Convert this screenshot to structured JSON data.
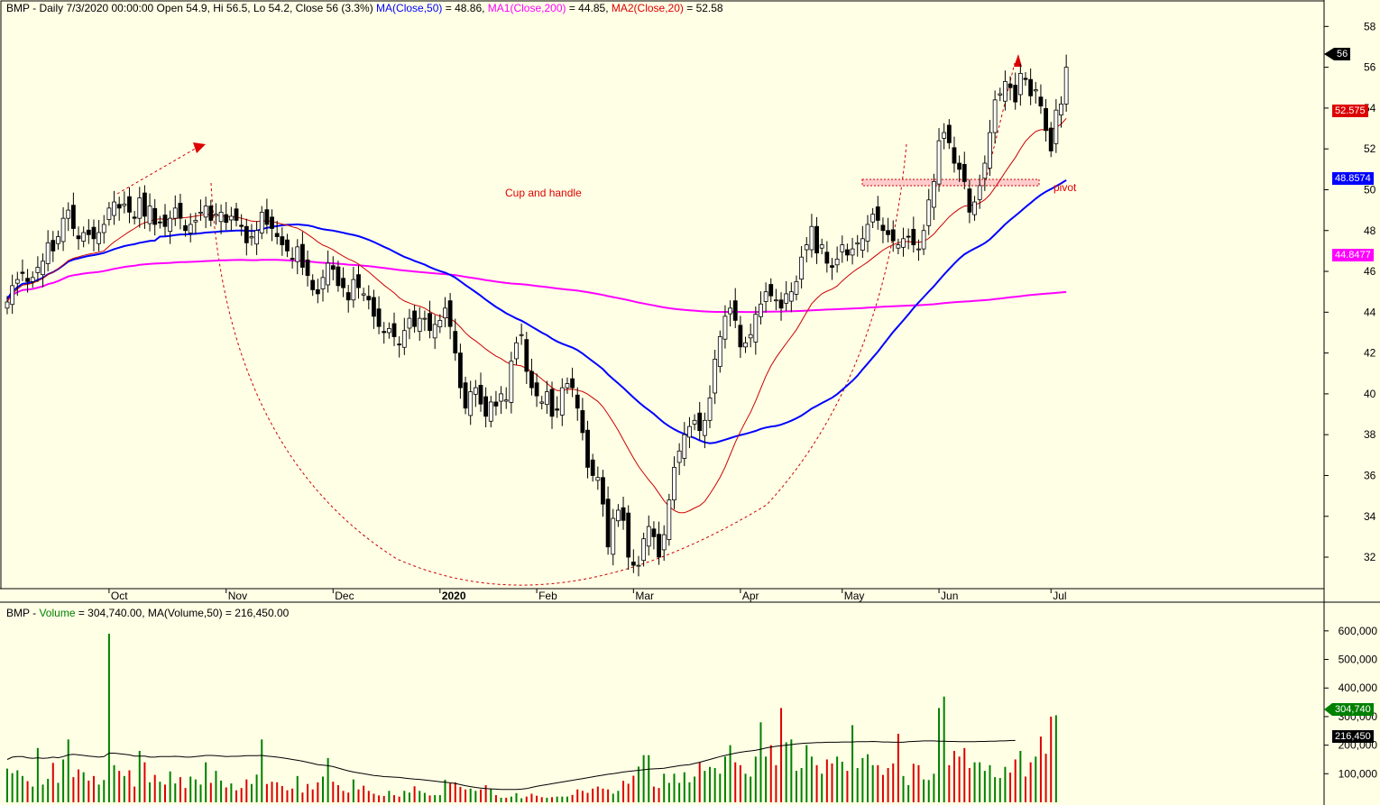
{
  "header": {
    "symbol": "BMP",
    "price_line": " - Daily 7/3/2020 00:00:00 Open 54.9, Hi 56.5, Lo 54.2, Close 56 (3.3%) ",
    "ma50_label": "MA(Close,50)",
    "ma50_value": " = 48.86, ",
    "ma200_label": "MA1(Close,200)",
    "ma200_value": " = 44.85, ",
    "ma20_label": "MA2(Close,20)",
    "ma20_value": " = 52.58"
  },
  "volume_header": {
    "symbol": "BMP",
    "sep": " - ",
    "volume_label": "Volume",
    "rest": " = 304,740.00, MA(Volume,50) = 216,450.00"
  },
  "annotations": {
    "pattern_label": "Cup and handle",
    "pivot_label": "pivot"
  },
  "colors": {
    "background": "#ffffe6",
    "up": "#008000",
    "down": "#dd0000",
    "ma50": "#0000ff",
    "ma200": "#ff00ff",
    "ma20": "#cc0000"
  },
  "tags": {
    "close": "56",
    "ma20": "52.575",
    "ma50": "48.8574",
    "ma200": "44.8477",
    "volume": "304,740",
    "volume_ma": "216,450"
  },
  "chart_data": {
    "type": "candlestick",
    "price_axis": {
      "ticks": [
        "58",
        "56",
        "54",
        "52",
        "50",
        "48",
        "46",
        "44",
        "42",
        "40",
        "38",
        "36",
        "34",
        "32"
      ],
      "range": [
        30.5,
        58.5
      ]
    },
    "volume_axis": {
      "ticks": [
        "600,000",
        "500,000",
        "400,000",
        "300,000",
        "200,000",
        "100,000"
      ],
      "range": [
        0,
        650000
      ]
    },
    "months": [
      {
        "label": "Oct",
        "index": 20
      },
      {
        "label": "Nov",
        "index": 43
      },
      {
        "label": "Dec",
        "index": 64
      },
      {
        "label": "2020",
        "index": 85
      },
      {
        "label": "Feb",
        "index": 104
      },
      {
        "label": "Mar",
        "index": 123
      },
      {
        "label": "Apr",
        "index": 144
      },
      {
        "label": "May",
        "index": 164
      },
      {
        "label": "Jun",
        "index": 183
      },
      {
        "label": "Jul",
        "index": 205
      }
    ],
    "close_series": [
      44.5,
      45.3,
      45.6,
      45.9,
      45.5,
      45.7,
      46.2,
      46.5,
      47.4,
      47.0,
      47.7,
      48.6,
      49.0,
      48.1,
      47.6,
      47.9,
      47.8,
      47.6,
      47.9,
      48.3,
      49.1,
      49.4,
      49.1,
      49.3,
      48.9,
      48.6,
      49.6,
      48.7,
      49.2,
      48.3,
      48.4,
      48.2,
      48.6,
      49.1,
      48.6,
      48.0,
      48.3,
      48.5,
      48.9,
      49.2,
      48.5,
      48.8,
      48.9,
      48.4,
      48.7,
      48.5,
      48.2,
      47.4,
      47.7,
      48.0,
      48.9,
      48.3,
      48.1,
      47.7,
      47.3,
      47.0,
      46.6,
      47.2,
      46.2,
      45.8,
      45.1,
      44.9,
      45.7,
      46.4,
      46.1,
      45.3,
      45.2,
      44.6,
      45.6,
      45.2,
      44.9,
      44.6,
      43.8,
      43.3,
      43.0,
      43.2,
      42.8,
      42.4,
      43.1,
      43.7,
      43.3,
      43.7,
      43.7,
      43.1,
      43.4,
      43.6,
      44.2,
      43.3,
      42.0,
      40.3,
      39.3,
      40.1,
      40.3,
      39.5,
      38.9,
      39.6,
      39.4,
      40.0,
      39.7,
      41.6,
      42.5,
      42.9,
      41.1,
      40.3,
      39.9,
      39.6,
      40.1,
      38.9,
      39.2,
      40.3,
      40.5,
      40.3,
      39.3,
      38.1,
      36.4,
      36.0,
      35.9,
      34.6,
      32.5,
      33.9,
      34.3,
      33.8,
      32.0,
      31.6,
      31.6,
      32.9,
      33.5,
      33.0,
      32.0,
      33.1,
      34.8,
      36.4,
      37.2,
      38.0,
      38.4,
      38.7,
      38.2,
      38.7,
      39.8,
      41.7,
      42.8,
      43.8,
      44.2,
      43.6,
      42.3,
      42.5,
      42.9,
      43.9,
      44.4,
      45.0,
      44.8,
      44.6,
      44.2,
      44.9,
      45.0,
      45.5,
      46.7,
      47.3,
      48.2,
      46.9,
      47.3,
      46.4,
      46.2,
      46.6,
      47.3,
      46.8,
      47.1,
      47.4,
      47.6,
      48.3,
      48.8,
      48.5,
      48.0,
      47.8,
      47.5,
      47.3,
      47.6,
      47.7,
      47.3,
      47.1,
      48.0,
      49.5,
      50.4,
      52.4,
      52.8,
      52.3,
      51.3,
      51.0,
      50.4,
      48.9,
      49.4,
      50.2,
      51.3,
      52.8,
      54.4,
      54.7,
      55.3,
      55.0,
      54.3,
      55.7,
      55.4,
      54.6,
      54.9,
      54.1,
      52.9,
      51.9,
      53.9,
      54.2,
      56.0
    ],
    "volume_series": [
      118000,
      102000,
      112000,
      92000,
      74000,
      55000,
      190000,
      62000,
      82000,
      138000,
      68000,
      150000,
      220000,
      88000,
      115000,
      105000,
      76000,
      92000,
      62000,
      78000,
      590000,
      130000,
      110000,
      92000,
      112000,
      55000,
      180000,
      140000,
      70000,
      96000,
      72000,
      62000,
      108000,
      66000,
      88000,
      50000,
      90000,
      80000,
      62000,
      140000,
      68000,
      110000,
      76000,
      52000,
      66000,
      42000,
      50000,
      80000,
      64000,
      97000,
      220000,
      64000,
      72000,
      70000,
      57000,
      42000,
      48000,
      92000,
      34000,
      64000,
      45000,
      70000,
      90000,
      155000,
      72000,
      60000,
      40000,
      34000,
      80000,
      45000,
      58000,
      40000,
      30000,
      24000,
      22000,
      40000,
      25000,
      20000,
      40000,
      34000,
      56000,
      40000,
      33000,
      24000,
      25000,
      25000,
      79000,
      66000,
      70000,
      54000,
      45000,
      48000,
      40000,
      45000,
      60000,
      46000,
      25000,
      16000,
      16000,
      20000,
      32000,
      14000,
      20000,
      30000,
      23000,
      18000,
      16000,
      18000,
      20000,
      20000,
      20000,
      26000,
      45000,
      40000,
      33000,
      48000,
      55000,
      48000,
      45000,
      30000,
      40000,
      75000,
      65000,
      93000,
      125000,
      165000,
      165000,
      55000,
      50000,
      100000,
      68000,
      100000,
      68000,
      105000,
      70000,
      90000,
      140000,
      110000,
      124000,
      120000,
      100000,
      160000,
      200000,
      140000,
      130000,
      100000,
      90000,
      160000,
      280000,
      160000,
      200000,
      130000,
      330000,
      210000,
      220000,
      110000,
      120000,
      200000,
      160000,
      130000,
      100000,
      150000,
      136000,
      160000,
      142000,
      110000,
      270000,
      120000,
      155000,
      168000,
      130000,
      130000,
      96000,
      120000,
      136000,
      240000,
      92000,
      60000,
      135000,
      130000,
      80000,
      78000,
      100000,
      330000,
      370000,
      130000,
      180000,
      160000,
      190000,
      120000,
      140000,
      140000,
      110000,
      130000,
      88000,
      85000,
      124000,
      104000,
      150000,
      180000,
      90000,
      140000,
      160000,
      230000,
      170000,
      300000,
      304740
    ],
    "volume_ma_series": [
      150000,
      158000,
      160000,
      160000,
      156000,
      154000,
      156000,
      154000,
      155000,
      158000,
      156000,
      160000,
      166000,
      168000,
      166000,
      164000,
      162000,
      160000,
      158000,
      160000,
      172000,
      172000,
      170000,
      168000,
      166000,
      162000,
      162000,
      162000,
      158000,
      158000,
      160000,
      160000,
      160000,
      161000,
      160000,
      158000,
      158000,
      160000,
      162000,
      164000,
      164000,
      163000,
      162000,
      160000,
      161000,
      161000,
      162000,
      163000,
      163000,
      163000,
      164000,
      162000,
      160000,
      158000,
      156000,
      153000,
      150000,
      147000,
      144000,
      140000,
      136000,
      132000,
      130000,
      128000,
      125000,
      120000,
      115000,
      110000,
      106000,
      103000,
      100000,
      97000,
      94000,
      92000,
      90000,
      89000,
      88000,
      87000,
      85000,
      83000,
      81000,
      80000,
      78000,
      76000,
      74000,
      72000,
      70000,
      68000,
      66000,
      62000,
      58000,
      55000,
      52000,
      50000,
      48000,
      47000,
      46000,
      45000,
      45000,
      45000,
      45000,
      46000,
      48000,
      52000,
      56000,
      59000,
      62000,
      65000,
      68000,
      71000,
      74000,
      77000,
      80000,
      83000,
      86000,
      89000,
      92000,
      95000,
      98000,
      100000,
      103000,
      106000,
      108000,
      110000,
      112000,
      114000,
      116000,
      117000,
      118000,
      119000,
      122000,
      125000,
      128000,
      130000,
      132000,
      136000,
      140000,
      145000,
      150000,
      155000,
      160000,
      164000,
      168000,
      172000,
      175000,
      178000,
      180000,
      182000,
      186000,
      190000,
      193000,
      196000,
      198000,
      200000,
      202000,
      204000,
      206000,
      207000,
      208000,
      209000,
      209000,
      210000,
      210000,
      210000,
      211000,
      211000,
      211000,
      212000,
      212000,
      212000,
      213000,
      212000,
      211000,
      211000,
      210000,
      210000,
      210000,
      212000,
      213000,
      214000,
      215000,
      215000,
      215000,
      214000,
      214000,
      213000,
      213000,
      212000,
      212000,
      212000,
      212000,
      213000,
      213000,
      214000,
      214000,
      215000,
      215000,
      216000,
      216450
    ]
  }
}
